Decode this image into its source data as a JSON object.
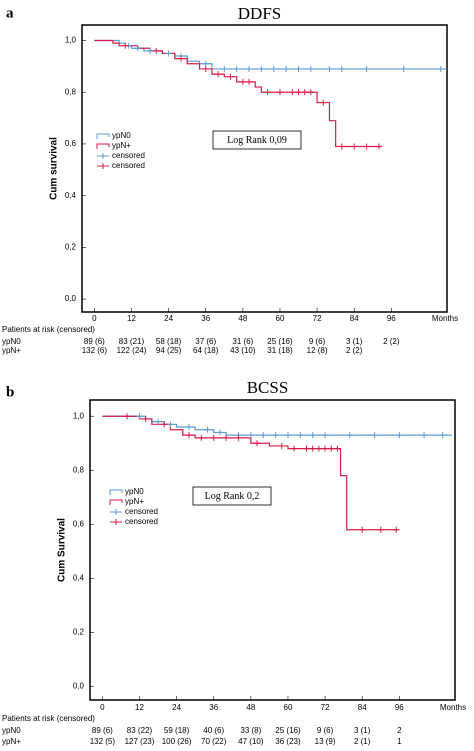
{
  "chart_data": [
    {
      "type": "survival",
      "panel_label": "a",
      "title": "DDFS",
      "y_label": "Cum survival",
      "x_label": "Months",
      "xlim": [
        -4,
        114
      ],
      "ylim": [
        -0.05,
        1.06
      ],
      "xticks": [
        0,
        12,
        24,
        36,
        48,
        60,
        72,
        84,
        96
      ],
      "yticks": [
        {
          "value": 0,
          "label": "0,0"
        },
        {
          "value": 0.2,
          "label": "0,2"
        },
        {
          "value": 0.4,
          "label": "0,4"
        },
        {
          "value": 0.6,
          "label": "0,6"
        },
        {
          "value": 0.8,
          "label": "0,8"
        },
        {
          "value": 1,
          "label": "1,0"
        }
      ],
      "annotation": "Log Rank 0,09",
      "series": [
        {
          "name": "ypN0",
          "color": "#5b9bd5",
          "style": "step",
          "x": [
            0,
            8,
            10,
            12,
            16,
            22,
            26,
            30,
            34,
            38,
            114
          ],
          "values": [
            1,
            0.99,
            0.98,
            0.97,
            0.96,
            0.95,
            0.94,
            0.92,
            0.91,
            0.89,
            0.89
          ]
        },
        {
          "name": "ypN+",
          "color": "#d81b4a",
          "style": "step",
          "x": [
            0,
            6,
            8,
            14,
            18,
            22,
            26,
            30,
            34,
            38,
            42,
            46,
            52,
            54,
            72,
            76,
            78,
            93
          ],
          "values": [
            1,
            0.99,
            0.98,
            0.97,
            0.96,
            0.95,
            0.93,
            0.91,
            0.89,
            0.87,
            0.86,
            0.84,
            0.82,
            0.8,
            0.76,
            0.69,
            0.59,
            0.59
          ]
        },
        {
          "name": "censored",
          "color": "#5b9bd5",
          "style": "censor",
          "x": [
            11,
            14,
            18,
            24,
            28,
            36,
            42,
            46,
            50,
            54,
            58,
            62,
            66,
            70,
            76,
            80,
            88,
            100,
            112
          ],
          "values": [
            0.98,
            0.97,
            0.96,
            0.95,
            0.94,
            0.91,
            0.89,
            0.89,
            0.89,
            0.89,
            0.89,
            0.89,
            0.89,
            0.89,
            0.89,
            0.89,
            0.89,
            0.89,
            0.89
          ]
        },
        {
          "name": "censored",
          "color": "#d81b4a",
          "style": "censor",
          "x": [
            10,
            20,
            28,
            36,
            40,
            44,
            48,
            50,
            56,
            60,
            64,
            66,
            68,
            70,
            74,
            80,
            84,
            88,
            92
          ],
          "values": [
            0.98,
            0.96,
            0.93,
            0.89,
            0.87,
            0.86,
            0.84,
            0.84,
            0.8,
            0.8,
            0.8,
            0.8,
            0.8,
            0.8,
            0.76,
            0.59,
            0.59,
            0.59,
            0.59
          ]
        }
      ],
      "risk_table": {
        "title": "Patients at risk (censored)",
        "rows": [
          {
            "name": "ypN0",
            "values": [
              "89 (6)",
              "83 (21)",
              "58 (18)",
              "37 (6)",
              "31 (6)",
              "25 (16)",
              "9 (6)",
              "3 (1)",
              "2 (2)"
            ]
          },
          {
            "name": "ypN+",
            "values": [
              "132 (6)",
              "122 (24)",
              "94 (25)",
              "64 (18)",
              "43 (10)",
              "31 (18)",
              "12 (8)",
              "2 (2)"
            ]
          }
        ]
      }
    },
    {
      "type": "survival",
      "panel_label": "b",
      "title": "BCSS",
      "y_label": "Cum Survival",
      "x_label": "Months",
      "xlim": [
        -4,
        114
      ],
      "ylim": [
        -0.05,
        1.06
      ],
      "xticks": [
        0,
        12,
        24,
        36,
        48,
        60,
        72,
        84,
        96
      ],
      "yticks": [
        {
          "value": 0,
          "label": "0,0"
        },
        {
          "value": 0.2,
          "label": "0,2"
        },
        {
          "value": 0.4,
          "label": "0,4"
        },
        {
          "value": 0.6,
          "label": "0,6"
        },
        {
          "value": 0.8,
          "label": "0,8"
        },
        {
          "value": 1,
          "label": "1,0"
        }
      ],
      "annotation": "Log Rank 0,2",
      "series": [
        {
          "name": "ypN0",
          "color": "#5b9bd5",
          "style": "step",
          "x": [
            0,
            14,
            16,
            20,
            24,
            30,
            36,
            40,
            113
          ],
          "values": [
            1,
            0.99,
            0.98,
            0.97,
            0.96,
            0.95,
            0.94,
            0.93,
            0.93
          ]
        },
        {
          "name": "ypN+",
          "color": "#d81b4a",
          "style": "step",
          "x": [
            0,
            12,
            16,
            22,
            26,
            30,
            48,
            54,
            60,
            77,
            79,
            96
          ],
          "values": [
            1,
            0.99,
            0.97,
            0.95,
            0.93,
            0.92,
            0.9,
            0.89,
            0.88,
            0.78,
            0.58,
            0.58
          ]
        },
        {
          "name": "censored",
          "color": "#5b9bd5",
          "style": "censor",
          "x": [
            12,
            18,
            22,
            28,
            34,
            38,
            44,
            48,
            52,
            56,
            60,
            64,
            68,
            72,
            80,
            88,
            96,
            104,
            110
          ],
          "values": [
            1,
            0.98,
            0.97,
            0.96,
            0.95,
            0.94,
            0.93,
            0.93,
            0.93,
            0.93,
            0.93,
            0.93,
            0.93,
            0.93,
            0.93,
            0.93,
            0.93,
            0.93,
            0.93
          ]
        },
        {
          "name": "censored",
          "color": "#d81b4a",
          "style": "censor",
          "x": [
            8,
            14,
            20,
            28,
            32,
            36,
            40,
            44,
            50,
            58,
            62,
            66,
            68,
            70,
            72,
            74,
            76,
            84,
            90,
            95
          ],
          "values": [
            1,
            0.99,
            0.97,
            0.93,
            0.92,
            0.92,
            0.92,
            0.92,
            0.9,
            0.89,
            0.88,
            0.88,
            0.88,
            0.88,
            0.88,
            0.88,
            0.88,
            0.58,
            0.58,
            0.58
          ]
        }
      ],
      "risk_table": {
        "title": "Patients at risk (censored)",
        "rows": [
          {
            "name": "ypN0",
            "values": [
              "89 (6)",
              "83 (22)",
              "59 (18)",
              "40 (6)",
              "33 (8)",
              "25 (16)",
              "9 (6)",
              "3 (1)",
              "2"
            ]
          },
          {
            "name": "ypN+",
            "values": [
              "132 (5)",
              "127 (23)",
              "100 (26)",
              "70 (22)",
              "47 (10)",
              "36 (23)",
              "13 (9)",
              "2 (1)",
              "1"
            ]
          }
        ]
      }
    }
  ]
}
